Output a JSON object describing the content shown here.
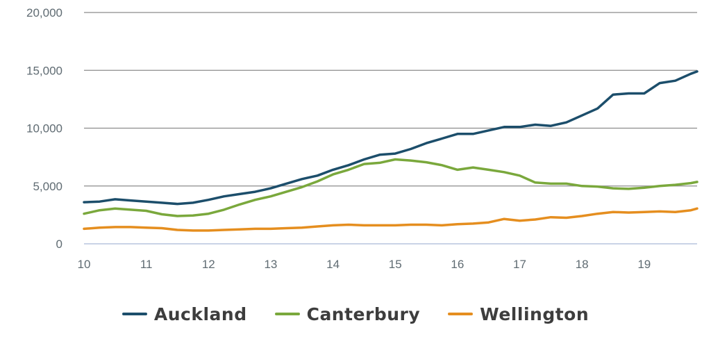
{
  "chart_data": {
    "type": "line",
    "title": "",
    "xlabel": "",
    "ylabel": "",
    "xlim": [
      10,
      19.85
    ],
    "ylim": [
      0,
      20000
    ],
    "yticks": [
      0,
      5000,
      10000,
      15000,
      20000
    ],
    "ytick_labels": [
      "0",
      "5,000",
      "10,000",
      "15,000",
      "20,000"
    ],
    "xticks": [
      10,
      11,
      12,
      13,
      14,
      15,
      16,
      17,
      18,
      19
    ],
    "xtick_labels": [
      "10",
      "11",
      "12",
      "13",
      "14",
      "15",
      "16",
      "17",
      "18",
      "19"
    ],
    "grid": true,
    "legend_position": "bottom-center",
    "x": [
      10.0,
      10.25,
      10.5,
      10.75,
      11.0,
      11.25,
      11.5,
      11.75,
      12.0,
      12.25,
      12.5,
      12.75,
      13.0,
      13.25,
      13.5,
      13.75,
      14.0,
      14.25,
      14.5,
      14.75,
      15.0,
      15.25,
      15.5,
      15.75,
      16.0,
      16.25,
      16.5,
      16.75,
      17.0,
      17.25,
      17.5,
      17.75,
      18.0,
      18.25,
      18.5,
      18.75,
      19.0,
      19.25,
      19.5,
      19.75,
      19.85
    ],
    "series": [
      {
        "name": "Auckland",
        "color": "#1c4e6b",
        "values": [
          3600,
          3650,
          3850,
          3750,
          3650,
          3550,
          3450,
          3550,
          3800,
          4100,
          4300,
          4500,
          4800,
          5200,
          5600,
          5900,
          6400,
          6800,
          7300,
          7700,
          7800,
          8200,
          8700,
          9100,
          9500,
          9500,
          9800,
          10100,
          10100,
          10300,
          10200,
          10500,
          11100,
          11700,
          12900,
          13000,
          13000,
          13900,
          14100,
          14700,
          14900
        ]
      },
      {
        "name": "Canterbury",
        "color": "#7aa83c",
        "values": [
          2600,
          2900,
          3050,
          2950,
          2850,
          2550,
          2400,
          2450,
          2600,
          2950,
          3400,
          3800,
          4100,
          4500,
          4900,
          5400,
          6000,
          6400,
          6900,
          7000,
          7300,
          7200,
          7050,
          6800,
          6400,
          6600,
          6400,
          6200,
          5900,
          5300,
          5200,
          5200,
          5000,
          4950,
          4800,
          4750,
          4850,
          5000,
          5100,
          5250,
          5350
        ]
      },
      {
        "name": "Wellington",
        "color": "#e58e1f",
        "values": [
          1300,
          1400,
          1450,
          1450,
          1400,
          1350,
          1200,
          1150,
          1150,
          1200,
          1250,
          1300,
          1300,
          1350,
          1400,
          1500,
          1600,
          1650,
          1600,
          1600,
          1600,
          1650,
          1650,
          1600,
          1700,
          1750,
          1850,
          2150,
          2000,
          2100,
          2300,
          2250,
          2400,
          2600,
          2750,
          2700,
          2750,
          2800,
          2750,
          2900,
          3050
        ]
      }
    ]
  }
}
